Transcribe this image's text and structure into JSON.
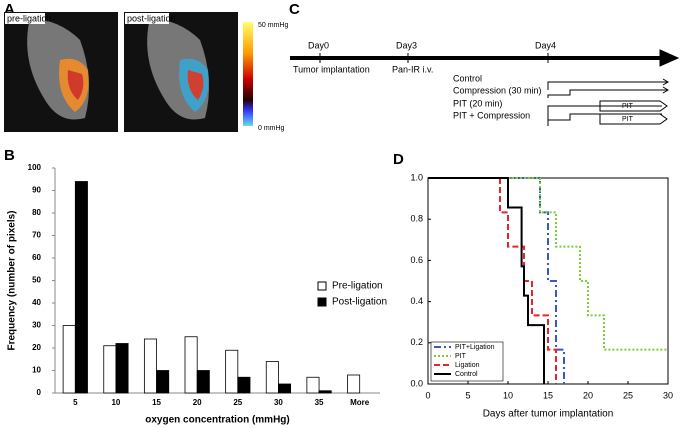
{
  "panels": {
    "a": "A",
    "b": "B",
    "c": "C",
    "d": "D"
  },
  "panel_a": {
    "images": [
      "pre-ligation",
      "post-ligation"
    ],
    "colorbar": {
      "max_label": "50 mmHg",
      "min_label": "0 mmHg"
    }
  },
  "panel_c": {
    "days": [
      "Day0",
      "Day3",
      "Day4"
    ],
    "events": [
      "Tumor implantation",
      "Pan-IR i.v."
    ],
    "groups": [
      "Control",
      "Compression (30 min)",
      "PIT (20 min)",
      "PIT + Compression"
    ],
    "pit_labels": [
      "PIT",
      "PIT"
    ]
  },
  "chart_data": [
    {
      "type": "bar",
      "xlabel": "oxygen concentration (mmHg)",
      "ylabel": "Frequency  (number of pixels)",
      "categories": [
        "5",
        "10",
        "15",
        "20",
        "25",
        "30",
        "35",
        "More"
      ],
      "series": [
        {
          "name": "Pre-ligation",
          "color": "#ffffff",
          "values": [
            30,
            21,
            24,
            25,
            19,
            14,
            7,
            8
          ]
        },
        {
          "name": "Post-ligation",
          "color": "#000000",
          "values": [
            94,
            22,
            10,
            10,
            7,
            4,
            1,
            null
          ]
        }
      ],
      "ylim": [
        0,
        100
      ],
      "yticks": [
        0,
        10,
        20,
        30,
        40,
        50,
        60,
        70,
        80,
        90,
        100
      ],
      "legend": "right"
    },
    {
      "type": "line",
      "xlabel": "Days after tumor implantation",
      "series": [
        {
          "name": "PIT+Ligation",
          "color": "#3a56c8",
          "dash": "dashdot",
          "x": [
            0,
            14,
            14,
            15,
            15,
            16,
            16,
            17,
            17
          ],
          "values": [
            1,
            1,
            0.833,
            0.833,
            0.5,
            0.5,
            0.167,
            0.167,
            0
          ]
        },
        {
          "name": "PIT",
          "color": "#7acc3a",
          "dash": "dotted",
          "x": [
            0,
            14,
            14,
            16,
            16,
            19,
            19,
            20,
            20,
            22,
            22,
            30
          ],
          "values": [
            1,
            1,
            0.833,
            0.833,
            0.667,
            0.667,
            0.5,
            0.5,
            0.333,
            0.333,
            0.167,
            0.167
          ]
        },
        {
          "name": "Ligation",
          "color": "#e3262b",
          "dash": "dashed",
          "x": [
            0,
            9,
            9,
            10,
            10,
            12,
            12,
            13,
            13,
            15,
            15,
            16,
            16
          ],
          "values": [
            1,
            1,
            0.833,
            0.833,
            0.667,
            0.667,
            0.5,
            0.5,
            0.333,
            0.333,
            0.167,
            0.167,
            0
          ]
        },
        {
          "name": "Control",
          "color": "#000000",
          "dash": "solid",
          "x": [
            0,
            10,
            10,
            11.7,
            11.7,
            12,
            12,
            12.5,
            12.5,
            14.5,
            14.5
          ],
          "values": [
            1,
            1,
            0.857,
            0.857,
            0.571,
            0.571,
            0.429,
            0.429,
            0.286,
            0.286,
            0
          ]
        }
      ],
      "xlim": [
        0,
        30
      ],
      "xticks": [
        0,
        5,
        10,
        15,
        20,
        25,
        30
      ],
      "ylim": [
        0,
        1
      ],
      "yticks": [
        {
          "value": 0,
          "label": "0.0"
        },
        {
          "value": 0.2,
          "label": "0.2"
        },
        {
          "value": 0.4,
          "label": "0.4"
        },
        {
          "value": 0.6,
          "label": "0.6"
        },
        {
          "value": 0.8,
          "label": "0.8"
        },
        {
          "value": 1,
          "label": "1.0"
        }
      ],
      "legend": "lower left"
    }
  ]
}
